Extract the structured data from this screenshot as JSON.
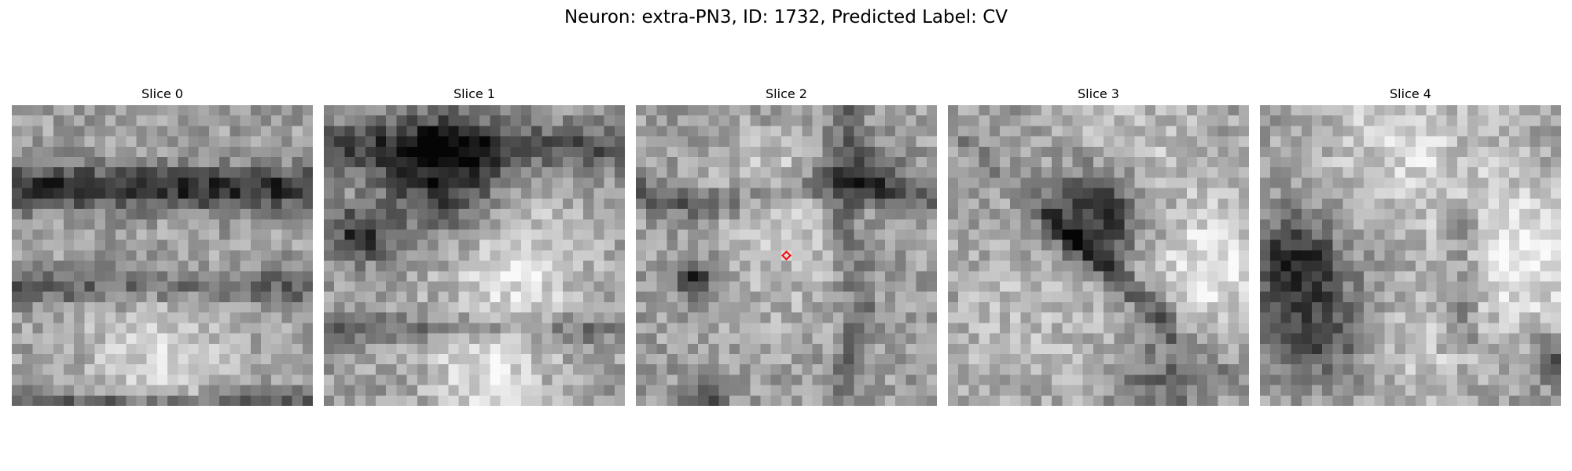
{
  "figure": {
    "title": "Neuron: extra-PN3, ID: 1732, Predicted Label: CV"
  },
  "slices": [
    {
      "title": "Slice 0",
      "seed": 11,
      "style": "band"
    },
    {
      "title": "Slice 1",
      "seed": 23,
      "style": "blob-top"
    },
    {
      "title": "Slice 2",
      "seed": 37,
      "style": "grid"
    },
    {
      "title": "Slice 3",
      "seed": 41,
      "style": "diag"
    },
    {
      "title": "Slice 4",
      "seed": 59,
      "style": "round-right"
    }
  ],
  "marker": {
    "slice_index": 2,
    "color": "#ff0000",
    "shape": "diamond",
    "grid_cell": [
      14,
      14
    ]
  },
  "image": {
    "grid_size": 29,
    "colormap": "gray"
  }
}
